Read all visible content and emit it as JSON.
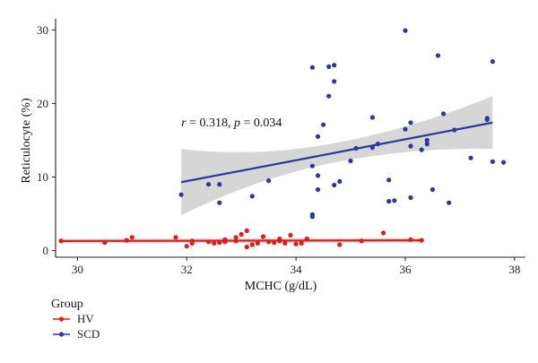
{
  "chart_data": {
    "type": "scatter",
    "xlabel": "MCHC (g/dL)",
    "ylabel": "Reticulocyte (%)",
    "xlim": [
      29.6,
      38.2
    ],
    "ylim": [
      -0.9,
      31.5
    ],
    "xticks": [
      30,
      32,
      34,
      36,
      38
    ],
    "yticks": [
      0,
      10,
      20,
      30
    ],
    "annotation": {
      "r_symbol": "r",
      "r_text": " = 0.318, ",
      "p_symbol": "p",
      "p_text": " = 0.034",
      "x": 31.9,
      "y": 16.9
    },
    "legend": {
      "title": "Group",
      "position": "bottom-left"
    },
    "series": [
      {
        "name": "HV",
        "color": "#e31a1c",
        "fit": {
          "x0": 29.7,
          "y0": 1.3,
          "x1": 36.3,
          "y1": 1.4,
          "band": 0.3
        },
        "points": [
          [
            29.7,
            1.3
          ],
          [
            30.5,
            1.1
          ],
          [
            30.9,
            1.4
          ],
          [
            31.0,
            1.8
          ],
          [
            31.8,
            1.8
          ],
          [
            32.0,
            0.6
          ],
          [
            32.1,
            1.0
          ],
          [
            32.1,
            1.3
          ],
          [
            32.4,
            1.2
          ],
          [
            32.5,
            1.0
          ],
          [
            32.6,
            1.1
          ],
          [
            32.7,
            1.5
          ],
          [
            32.7,
            1.2
          ],
          [
            32.9,
            1.8
          ],
          [
            32.9,
            1.3
          ],
          [
            33.0,
            2.2
          ],
          [
            33.1,
            0.5
          ],
          [
            33.1,
            2.7
          ],
          [
            33.2,
            0.8
          ],
          [
            33.3,
            1.0
          ],
          [
            33.4,
            1.9
          ],
          [
            33.5,
            1.2
          ],
          [
            33.6,
            1.1
          ],
          [
            33.7,
            1.6
          ],
          [
            33.7,
            1.3
          ],
          [
            33.8,
            1.0
          ],
          [
            33.9,
            2.1
          ],
          [
            34.0,
            0.9
          ],
          [
            34.1,
            1.0
          ],
          [
            34.2,
            1.6
          ],
          [
            34.8,
            0.8
          ],
          [
            35.2,
            1.3
          ],
          [
            35.6,
            2.4
          ],
          [
            36.1,
            1.5
          ],
          [
            36.3,
            1.4
          ]
        ]
      },
      {
        "name": "SCD",
        "color": "#2b3a98",
        "fit": {
          "x0": 31.9,
          "y0": 9.3,
          "x1": 37.6,
          "y1": 17.4,
          "band_low": 4.5,
          "band_mid": 1.3,
          "band_high": 3.6
        },
        "points": [
          [
            31.9,
            7.6
          ],
          [
            32.4,
            9.0
          ],
          [
            32.6,
            6.5
          ],
          [
            32.6,
            9.0
          ],
          [
            33.2,
            7.4
          ],
          [
            33.5,
            9.5
          ],
          [
            34.3,
            4.6
          ],
          [
            34.3,
            4.9
          ],
          [
            34.3,
            24.9
          ],
          [
            34.3,
            11.5
          ],
          [
            34.4,
            10.2
          ],
          [
            34.4,
            15.5
          ],
          [
            34.4,
            8.3
          ],
          [
            34.5,
            17.1
          ],
          [
            34.6,
            21.0
          ],
          [
            34.6,
            25.0
          ],
          [
            34.7,
            23.0
          ],
          [
            34.7,
            25.2
          ],
          [
            34.7,
            8.9
          ],
          [
            34.8,
            9.4
          ],
          [
            35.0,
            12.2
          ],
          [
            35.1,
            13.9
          ],
          [
            35.4,
            18.1
          ],
          [
            35.4,
            14.0
          ],
          [
            35.5,
            14.5
          ],
          [
            35.7,
            6.7
          ],
          [
            35.7,
            9.6
          ],
          [
            35.8,
            6.8
          ],
          [
            36.0,
            29.9
          ],
          [
            36.0,
            16.5
          ],
          [
            36.1,
            17.4
          ],
          [
            36.1,
            14.2
          ],
          [
            36.1,
            7.2
          ],
          [
            36.3,
            13.7
          ],
          [
            36.4,
            14.5
          ],
          [
            36.4,
            15.0
          ],
          [
            36.5,
            8.3
          ],
          [
            36.6,
            26.5
          ],
          [
            36.7,
            18.6
          ],
          [
            36.8,
            6.5
          ],
          [
            36.9,
            16.4
          ],
          [
            37.2,
            12.6
          ],
          [
            37.5,
            18.0
          ],
          [
            37.5,
            17.8
          ],
          [
            37.6,
            25.7
          ],
          [
            37.6,
            12.1
          ],
          [
            37.8,
            12.0
          ]
        ]
      }
    ]
  }
}
